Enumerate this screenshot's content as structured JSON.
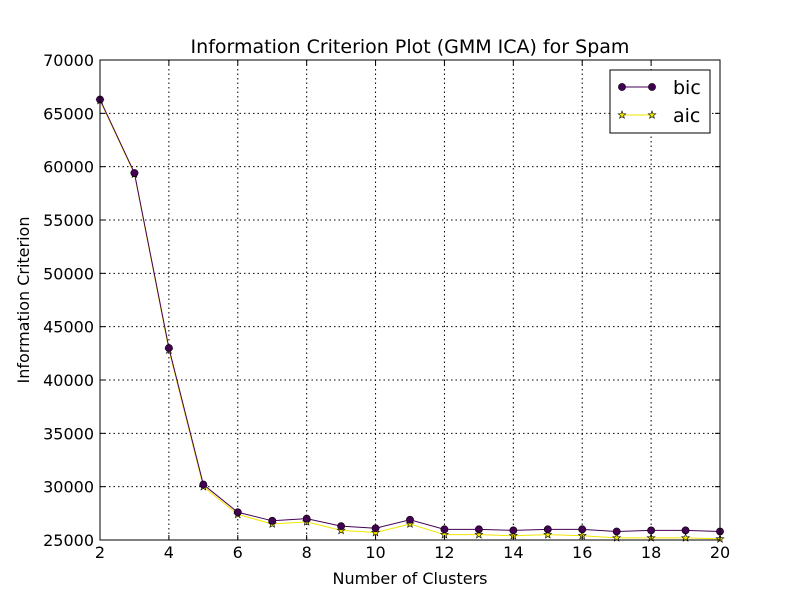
{
  "chart_data": {
    "type": "line",
    "title": "Information Criterion Plot (GMM ICA) for Spam",
    "xlabel": "Number of Clusters",
    "ylabel": "Information Criterion",
    "xlim": [
      2,
      20
    ],
    "ylim": [
      25000,
      70000
    ],
    "xticks": [
      2,
      4,
      6,
      8,
      10,
      12,
      14,
      16,
      18,
      20
    ],
    "yticks": [
      25000,
      30000,
      35000,
      40000,
      45000,
      50000,
      55000,
      60000,
      65000,
      70000
    ],
    "grid": true,
    "legend_position": "top-right",
    "x": [
      2,
      3,
      4,
      5,
      6,
      7,
      8,
      9,
      10,
      11,
      12,
      13,
      14,
      15,
      16,
      17,
      18,
      19,
      20
    ],
    "series": [
      {
        "name": "bic",
        "color": "#440154",
        "marker": "circle",
        "values": [
          66300,
          59400,
          43000,
          30200,
          27600,
          26800,
          27000,
          26300,
          26100,
          26900,
          26000,
          26000,
          25900,
          26000,
          26000,
          25800,
          25900,
          25900,
          25800
        ]
      },
      {
        "name": "aic",
        "color": "#f2e600",
        "marker": "star",
        "values": [
          66200,
          59300,
          42800,
          30000,
          27400,
          26500,
          26700,
          25900,
          25700,
          26500,
          25500,
          25500,
          25400,
          25500,
          25400,
          25200,
          25200,
          25200,
          25100
        ]
      }
    ]
  }
}
